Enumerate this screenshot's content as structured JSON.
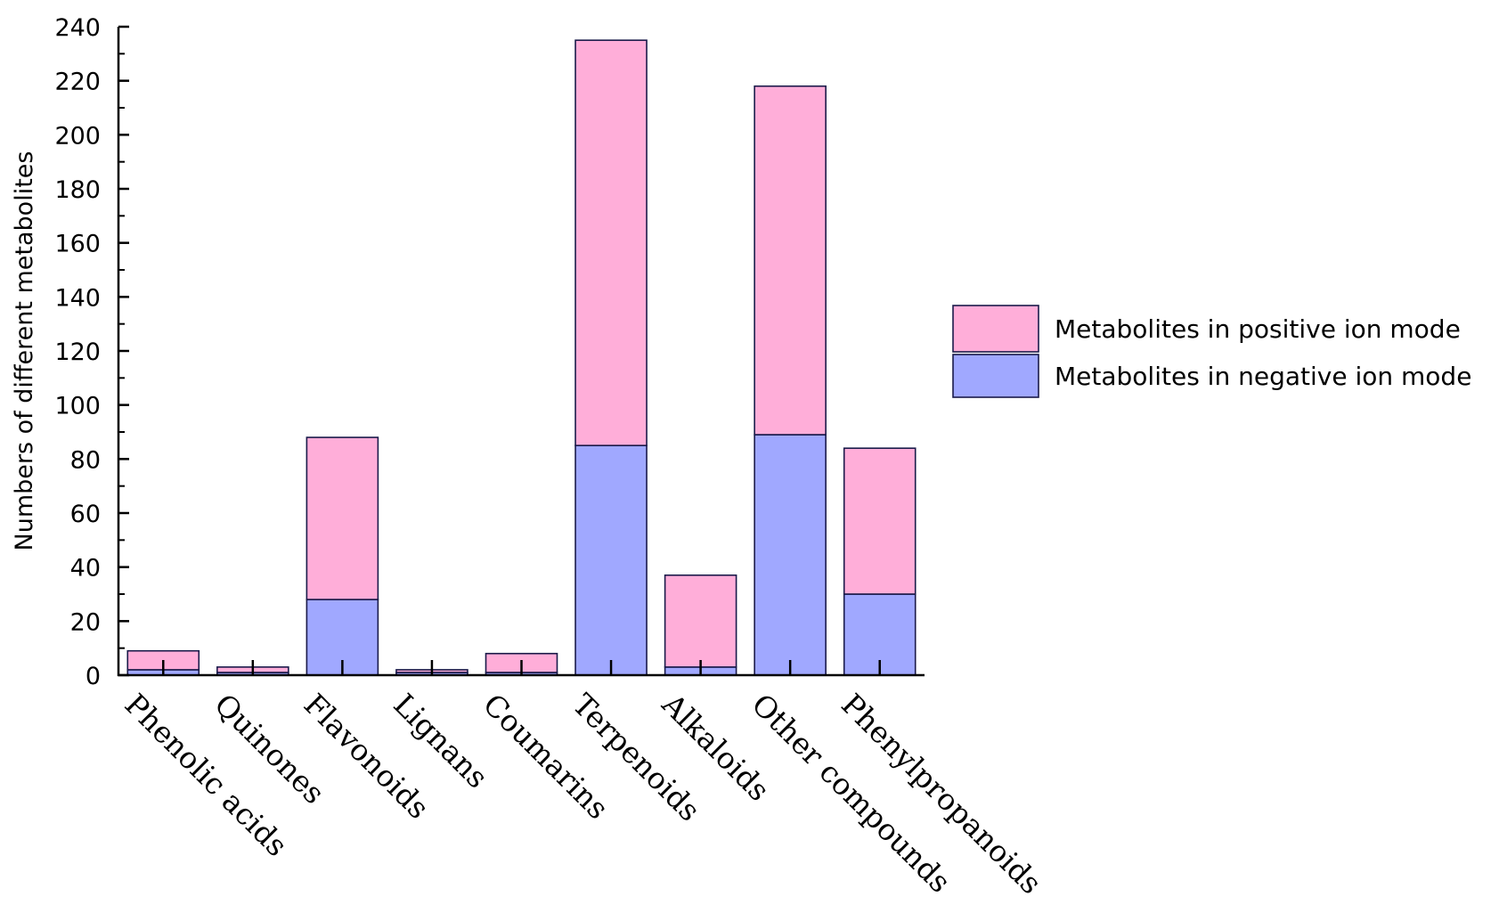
{
  "chart_data": {
    "type": "bar",
    "stacked": true,
    "title": "",
    "xlabel": "",
    "ylabel": "Numbers of different metabolites",
    "ylim": [
      0,
      240
    ],
    "yticks": [
      0,
      20,
      40,
      60,
      80,
      100,
      120,
      140,
      160,
      180,
      200,
      220,
      240
    ],
    "grid": false,
    "legend_position": "right",
    "categories": [
      "Phenolic acids",
      "Quinones",
      "Flavonoids",
      "Lignans",
      "Coumarins",
      "Terpenoids",
      "Alkaloids",
      "Other compounds",
      "Phenylpropanoids"
    ],
    "series": [
      {
        "name": "Metabolites in negative ion mode",
        "color": "#a0a8ff",
        "values": [
          2,
          1,
          28,
          1,
          1,
          85,
          3,
          89,
          30
        ]
      },
      {
        "name": "Metabolites in positive ion mode",
        "color": "#ffaed9",
        "values": [
          7,
          2,
          60,
          1,
          7,
          150,
          34,
          129,
          54
        ]
      }
    ],
    "legend": [
      {
        "name": "Metabolites in positive ion mode",
        "color": "#ffaed9"
      },
      {
        "name": "Metabolites in negative ion mode",
        "color": "#a0a8ff"
      }
    ]
  }
}
